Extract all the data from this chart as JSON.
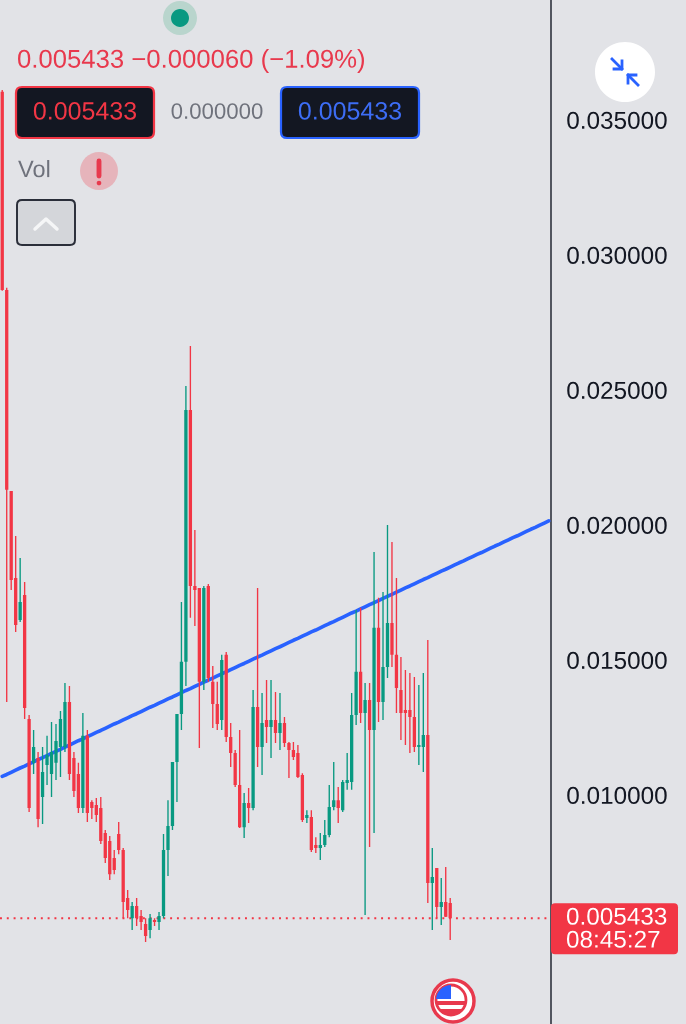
{
  "chart_data": {
    "type": "candlestick",
    "categories": [
      null,
      null,
      null,
      null,
      null,
      null,
      null,
      null,
      null,
      null,
      null,
      null,
      null,
      null,
      null,
      null,
      null,
      null,
      null,
      null,
      null,
      null,
      null,
      null,
      null,
      null,
      null,
      null,
      null,
      null,
      null,
      null,
      null,
      null,
      null,
      null,
      null,
      null,
      null,
      null,
      null,
      null,
      null,
      null,
      null,
      null,
      null,
      null,
      null,
      null,
      null,
      null,
      null,
      null,
      null,
      null,
      null,
      null,
      null,
      null,
      null,
      null,
      null,
      null,
      null,
      null,
      null,
      null,
      null,
      null,
      null,
      null,
      null,
      null,
      null,
      null,
      null,
      null,
      null,
      null,
      null,
      null,
      null,
      null,
      null,
      null,
      null,
      null,
      null,
      null,
      null,
      null,
      null,
      null,
      null,
      null,
      null,
      null,
      null,
      null,
      null,
      null,
      null,
      null,
      null,
      null,
      null,
      null,
      null,
      null,
      null,
      null,
      null,
      null,
      null,
      null,
      null,
      null,
      null,
      null,
      null,
      null,
      null
    ],
    "ohlc": [
      [
        0.03604,
        0.03611,
        0.02867,
        0.0287
      ],
      [
        0.0287,
        0.02878,
        0.01344,
        0.0213
      ],
      [
        0.02126,
        0.02126,
        0.01759,
        0.01796
      ],
      [
        0.01804,
        0.01959,
        0.01604,
        0.0163
      ],
      [
        0.01648,
        0.01878,
        0.01641,
        0.01715
      ],
      [
        0.01741,
        0.01789,
        0.01281,
        0.01322
      ],
      [
        0.01281,
        0.01296,
        0.00937,
        0.00952
      ],
      [
        0.01119,
        0.01241,
        0.01078,
        0.01178
      ],
      [
        0.01137,
        0.01159,
        0.00881,
        0.00911
      ],
      [
        0.00993,
        0.01178,
        0.00893,
        0.01085
      ],
      [
        0.01111,
        0.01219,
        0.01037,
        0.01148
      ],
      [
        0.01078,
        0.0127,
        0.00993,
        0.01159
      ],
      [
        0.01119,
        0.01263,
        0.01056,
        0.012
      ],
      [
        0.01178,
        0.01311,
        0.01067,
        0.01281
      ],
      [
        0.01178,
        0.01415,
        0.01159,
        0.01344
      ],
      [
        0.01344,
        0.01404,
        0.01056,
        0.01078
      ],
      [
        0.01137,
        0.01159,
        0.00993,
        0.01015
      ],
      [
        0.01078,
        0.01119,
        0.00933,
        0.00952
      ],
      [
        0.00952,
        0.01304,
        0.00933,
        0.01219
      ],
      [
        0.01219,
        0.01241,
        0.009,
        0.00933
      ],
      [
        0.00974,
        0.00981,
        0.00911,
        0.00952
      ],
      [
        0.00963,
        0.00989,
        0.009,
        0.00926
      ],
      [
        0.00952,
        0.00993,
        0.00819,
        0.0083
      ],
      [
        0.00859,
        0.0087,
        0.00748,
        0.00767
      ],
      [
        0.0083,
        0.00848,
        0.00685,
        0.00707
      ],
      [
        0.00767,
        0.00796,
        0.00707,
        0.00722
      ],
      [
        0.00856,
        0.009,
        0.00781,
        0.00796
      ],
      [
        0.00796,
        0.00804,
        0.00544,
        0.00604
      ],
      [
        0.00619,
        0.00648,
        0.00544,
        0.00574
      ],
      [
        0.00544,
        0.00604,
        0.005,
        0.00589
      ],
      [
        0.00589,
        0.00619,
        0.00515,
        0.00544
      ],
      [
        0.00552,
        0.00574,
        0.005,
        0.0053
      ],
      [
        0.00522,
        0.00544,
        0.00456,
        0.00478
      ],
      [
        0.005,
        0.00559,
        0.0047,
        0.00544
      ],
      [
        0.00537,
        0.00544,
        0.00515,
        0.0053
      ],
      [
        0.0053,
        0.00567,
        0.005,
        0.00552
      ],
      [
        0.00552,
        0.00856,
        0.00544,
        0.00796
      ],
      [
        0.00796,
        0.00981,
        0.007,
        0.00885
      ],
      [
        0.00885,
        0.01122,
        0.0087,
        0.01122
      ],
      [
        0.01122,
        0.013,
        0.00974,
        0.013
      ],
      [
        0.013,
        0.01715,
        0.01241,
        0.01493
      ],
      [
        0.01493,
        0.02515,
        0.01404,
        0.02426
      ],
      [
        0.02426,
        0.02663,
        0.01656,
        0.01774
      ],
      [
        0.01774,
        0.01981,
        0.01626,
        0.01759
      ],
      [
        0.01767,
        0.01767,
        0.01174,
        0.01419
      ],
      [
        0.01419,
        0.01774,
        0.01389,
        0.01767
      ],
      [
        0.01774,
        0.01781,
        0.01419,
        0.01433
      ],
      [
        0.01419,
        0.01478,
        0.01248,
        0.01337
      ],
      [
        0.01337,
        0.01419,
        0.01241,
        0.01263
      ],
      [
        0.01278,
        0.01519,
        0.01241,
        0.015
      ],
      [
        0.01519,
        0.0153,
        0.01196,
        0.01215
      ],
      [
        0.01215,
        0.01267,
        0.01104,
        0.01156
      ],
      [
        0.01156,
        0.01167,
        0.0103,
        0.01037
      ],
      [
        0.01037,
        0.01241,
        0.00878,
        0.00881
      ],
      [
        0.00881,
        0.01007,
        0.00841,
        0.0097
      ],
      [
        0.0097,
        0.01026,
        0.00896,
        0.00952
      ],
      [
        0.00952,
        0.01389,
        0.00944,
        0.01326
      ],
      [
        0.01326,
        0.01767,
        0.01104,
        0.01178
      ],
      [
        0.01178,
        0.01378,
        0.01074,
        0.01267
      ],
      [
        0.01278,
        0.01426,
        0.01193,
        0.01252
      ],
      [
        0.01252,
        0.01426,
        0.01137,
        0.01278
      ],
      [
        0.01278,
        0.01381,
        0.01193,
        0.0123
      ],
      [
        0.0123,
        0.01378,
        0.01167,
        0.01267
      ],
      [
        0.01267,
        0.01289,
        0.01178,
        0.01193
      ],
      [
        0.01193,
        0.01196,
        0.01063,
        0.01167
      ],
      [
        0.01167,
        0.01196,
        0.0113,
        0.01141
      ],
      [
        0.01156,
        0.01185,
        0.01063,
        0.01067
      ],
      [
        0.01074,
        0.01081,
        0.009,
        0.00907
      ],
      [
        0.00915,
        0.00944,
        0.00896,
        0.00926
      ],
      [
        0.00919,
        0.00944,
        0.00789,
        0.00796
      ],
      [
        0.00815,
        0.00844,
        0.00785,
        0.00804
      ],
      [
        0.00804,
        0.00859,
        0.00759,
        0.00815
      ],
      [
        0.00815,
        0.00907,
        0.00807,
        0.00852
      ],
      [
        0.00852,
        0.01037,
        0.00844,
        0.00956
      ],
      [
        0.00956,
        0.01122,
        0.00944,
        0.00981
      ],
      [
        0.00981,
        0.0103,
        0.00896,
        0.00952
      ],
      [
        0.00944,
        0.01056,
        0.00937,
        0.01048
      ],
      [
        0.01044,
        0.01156,
        0.01019,
        0.01056
      ],
      [
        0.01048,
        0.01378,
        0.01019,
        0.01296
      ],
      [
        0.01296,
        0.01685,
        0.01259,
        0.01456
      ],
      [
        0.01456,
        0.01693,
        0.01267,
        0.01304
      ],
      [
        0.01304,
        0.01415,
        0.00556,
        0.01352
      ],
      [
        0.01352,
        0.01415,
        0.00807,
        0.01241
      ],
      [
        0.01241,
        0.019,
        0.00859,
        0.01619
      ],
      [
        0.01619,
        0.0173,
        0.0127,
        0.01344
      ],
      [
        0.01344,
        0.01752,
        0.01278,
        0.01474
      ],
      [
        0.01474,
        0.02,
        0.01433,
        0.01637
      ],
      [
        0.01637,
        0.01937,
        0.01474,
        0.01519
      ],
      [
        0.01519,
        0.01804,
        0.01304,
        0.01396
      ],
      [
        0.01389,
        0.01511,
        0.01204,
        0.01304
      ],
      [
        0.01315,
        0.01463,
        0.01185,
        0.01304
      ],
      [
        0.01315,
        0.01452,
        0.01156,
        0.01289
      ],
      [
        0.01289,
        0.01437,
        0.01159,
        0.01178
      ],
      [
        0.01178,
        0.01407,
        0.01111,
        0.01185
      ],
      [
        0.01178,
        0.01452,
        0.01085,
        0.01222
      ],
      [
        0.01222,
        0.01574,
        0.006,
        0.00674
      ],
      [
        0.00674,
        0.00804,
        0.005,
        0.00696
      ],
      [
        0.0073,
        0.0073,
        0.00544,
        0.00585
      ],
      [
        0.00585,
        0.00693,
        0.00519,
        0.00604
      ],
      [
        0.00604,
        0.00733,
        0.00548,
        0.005493
      ],
      [
        0.006,
        0.00619,
        0.00463,
        0.005433
      ],
      null,
      null,
      null,
      null,
      null,
      null,
      null,
      null,
      null,
      null,
      null,
      null,
      null,
      null,
      null,
      null,
      null,
      null,
      null,
      null,
      null,
      null
    ],
    "colors": [
      "#f23645",
      "#f23645",
      "#f23645",
      "#f23645",
      "#089981",
      "#f23645",
      "#f23645",
      "#089981",
      "#f23645",
      "#089981",
      "#089981",
      "#089981",
      "#089981",
      "#089981",
      "#089981",
      "#f23645",
      "#f23645",
      "#f23645",
      "#089981",
      "#f23645",
      "#f23645",
      "#f23645",
      "#f23645",
      "#f23645",
      "#f23645",
      "#f23645",
      "#f23645",
      "#f23645",
      "#f23645",
      "#089981",
      "#f23645",
      "#f23645",
      "#f23645",
      "#089981",
      "#f23645",
      "#089981",
      "#089981",
      "#089981",
      "#089981",
      "#089981",
      "#089981",
      "#089981",
      "#f23645",
      "#f23645",
      "#f23645",
      "#089981",
      "#f23645",
      "#f23645",
      "#f23645",
      "#089981",
      "#f23645",
      "#f23645",
      "#f23645",
      "#f23645",
      "#089981",
      "#f23645",
      "#089981",
      "#f23645",
      "#089981",
      "#f23645",
      "#089981",
      "#f23645",
      "#089981",
      "#f23645",
      "#f23645",
      "#f23645",
      "#f23645",
      "#f23645",
      "#089981",
      "#f23645",
      "#f23645",
      "#089981",
      "#089981",
      "#089981",
      "#089981",
      "#f23645",
      "#089981",
      "#089981",
      "#089981",
      "#089981",
      "#f23645",
      "#089981",
      "#f23645",
      "#089981",
      "#f23645",
      "#089981",
      "#089981",
      "#f23645",
      "#f23645",
      "#f23645",
      "#f23645",
      "#f23645",
      "#f23645",
      "#089981",
      "#089981",
      "#f23645",
      "#089981",
      "#f23645",
      "#089981",
      "#f23645",
      "#f23645",
      null,
      null,
      null,
      null,
      null,
      null,
      null,
      null,
      null,
      null,
      null,
      null,
      null,
      null,
      null,
      null,
      null,
      null,
      null,
      null,
      null,
      null
    ],
    "series": [
      {
        "type": "line",
        "color": "#2962ff",
        "values": [
          0.01069,
          0.01076,
          0.01084,
          0.01092,
          0.011,
          0.01107,
          0.01115,
          0.01123,
          0.01131,
          0.01138,
          0.01146,
          0.01154,
          0.01162,
          0.01169,
          0.01177,
          0.01185,
          0.01193,
          0.01201,
          0.01208,
          0.01216,
          0.01224,
          0.01232,
          0.01239,
          0.01247,
          0.01255,
          0.01263,
          0.0127,
          0.01278,
          0.01286,
          0.01294,
          0.01301,
          0.01309,
          0.01317,
          0.01325,
          0.01332,
          0.0134,
          0.01348,
          0.01356,
          0.01363,
          0.01371,
          0.01379,
          0.01387,
          0.01394,
          0.01402,
          0.0141,
          0.01418,
          0.01425,
          0.01433,
          0.01441,
          0.01449,
          0.01456,
          0.01464,
          0.01472,
          0.0148,
          0.01487,
          0.01495,
          0.01503,
          0.01511,
          0.01518,
          0.01526,
          0.01534,
          0.01542,
          0.01549,
          0.01557,
          0.01565,
          0.01573,
          0.0158,
          0.01588,
          0.01596,
          0.01604,
          0.01611,
          0.01619,
          0.01627,
          0.01635,
          0.01642,
          0.0165,
          0.01658,
          0.01666,
          0.01674,
          0.01681,
          0.01689,
          0.01697,
          0.01705,
          0.01712,
          0.0172,
          0.01728,
          0.01736,
          0.01743,
          0.01751,
          0.01759,
          0.01767,
          0.01774,
          0.01782,
          0.0179,
          0.01798,
          0.01805,
          0.01813,
          0.01821,
          0.01829,
          0.01836,
          0.01844,
          0.01852,
          0.0186,
          0.01867,
          0.01875,
          0.01883,
          0.01891,
          0.01898,
          0.01906,
          0.01914,
          0.01922,
          0.01929,
          0.01937,
          0.01945,
          0.01953,
          0.0196,
          0.01968,
          0.01976,
          0.01984,
          0.01991,
          0.01999,
          0.02007,
          0.02015
        ]
      }
    ],
    "ylim": [
      0.00152,
      0.03944
    ],
    "yticks": [
      {
        "value": 0.01,
        "label": "0.010000"
      },
      {
        "value": 0.015,
        "label": "0.015000"
      },
      {
        "value": 0.02,
        "label": "0.020000"
      },
      {
        "value": 0.025,
        "label": "0.025000"
      },
      {
        "value": 0.03,
        "label": "0.030000"
      },
      {
        "value": 0.035,
        "label": "0.035000"
      }
    ],
    "tick_labels": "y",
    "ref_lines": [
      {
        "axis": "y",
        "value": 0.005433,
        "label": "0.005433",
        "color": "#f23645",
        "line_style": "dotted"
      }
    ],
    "annotations": [
      "0.005433 −0.000060 (−1.09%)",
      "0.005433",
      "0.000000",
      "0.005433",
      "Vol",
      "08:45:27"
    ]
  }
}
